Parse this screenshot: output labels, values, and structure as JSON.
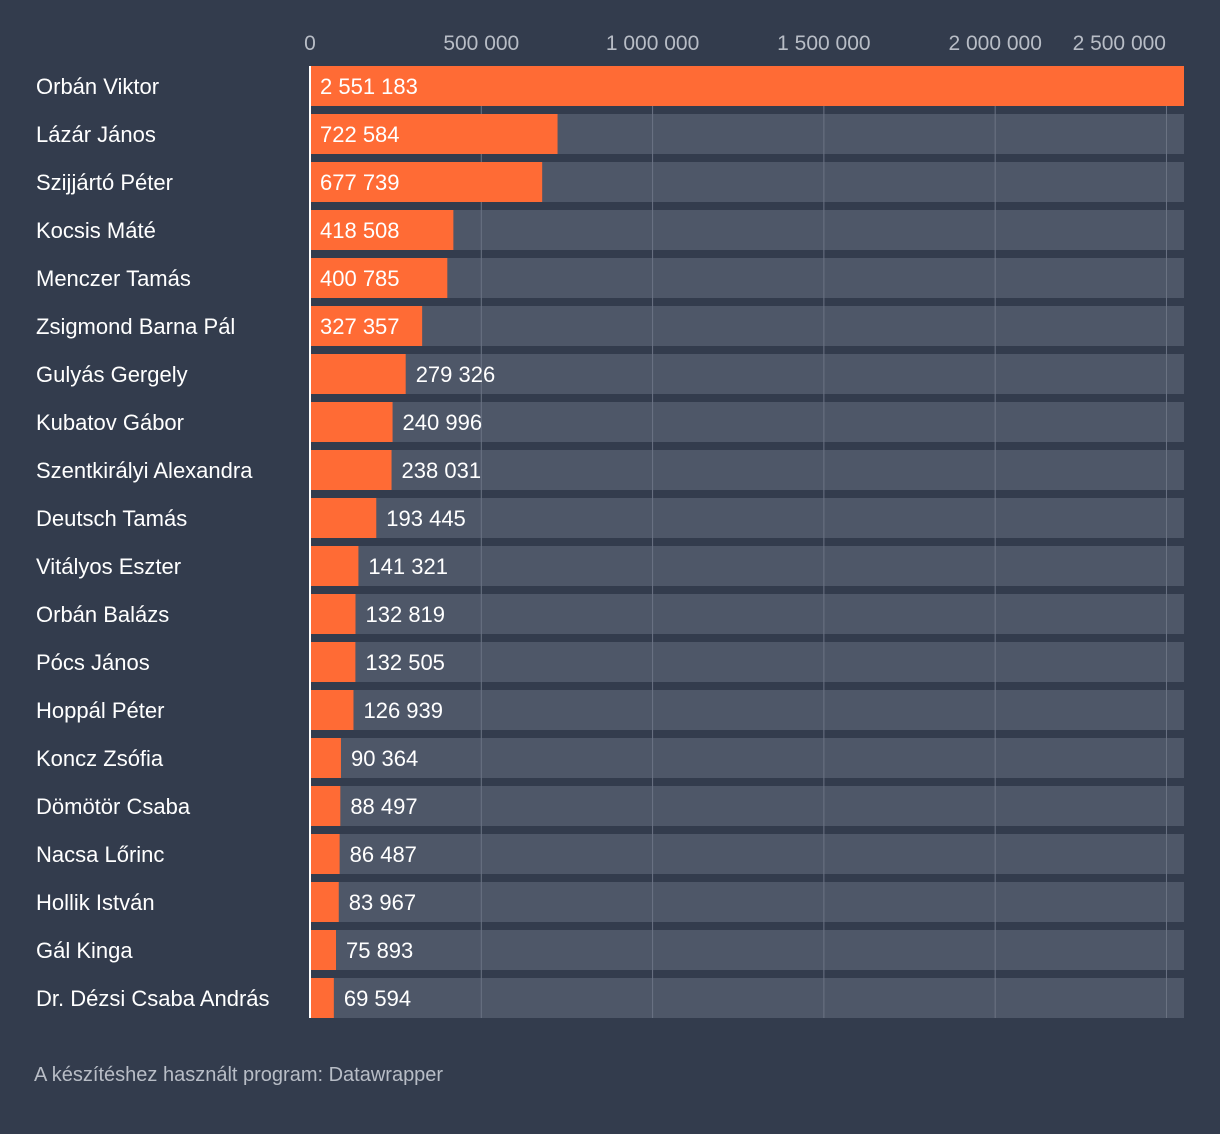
{
  "colors": {
    "background": "#333c4d",
    "bar": "#ff6b35",
    "track": "#4e5768",
    "grid": "#6b7384",
    "label": "#ffffff",
    "tick": "#b8bdc6"
  },
  "chart_data": {
    "type": "bar",
    "orientation": "horizontal",
    "title": "",
    "xlabel": "",
    "ylabel": "",
    "xlim": [
      0,
      2551183
    ],
    "ticks": [
      0,
      500000,
      1000000,
      1500000,
      2000000,
      2500000
    ],
    "tick_labels": [
      "0",
      "500 000",
      "1 000 000",
      "1 500 000",
      "2 000 000",
      "2 500 000"
    ],
    "categories": [
      "Orbán Viktor",
      "Lázár János",
      "Szijjártó Péter",
      "Kocsis Máté",
      "Menczer Tamás",
      "Zsigmond Barna Pál",
      "Gulyás Gergely",
      "Kubatov Gábor",
      "Szentkirályi Alexandra",
      "Deutsch Tamás",
      "Vitályos Eszter",
      "Orbán Balázs",
      "Pócs János",
      "Hoppál Péter",
      "Koncz Zsófia",
      "Dömötör Csaba",
      "Nacsa Lőrinc",
      "Hollik István",
      "Gál Kinga",
      "Dr. Dézsi Csaba András"
    ],
    "values": [
      2551183,
      722584,
      677739,
      418508,
      400785,
      327357,
      279326,
      240996,
      238031,
      193445,
      141321,
      132819,
      132505,
      126939,
      90364,
      88497,
      86487,
      83967,
      75893,
      69594
    ],
    "value_labels": [
      "2 551 183",
      "722 584",
      "677 739",
      "418 508",
      "400 785",
      "327 357",
      "279 326",
      "240 996",
      "238 031",
      "193 445",
      "141 321",
      "132 819",
      "132 505",
      "126 939",
      "90 364",
      "88 497",
      "86 487",
      "83 967",
      "75 893",
      "69 594"
    ],
    "grid": true
  },
  "footer": {
    "note": "A készítéshez használt program: Datawrapper"
  }
}
